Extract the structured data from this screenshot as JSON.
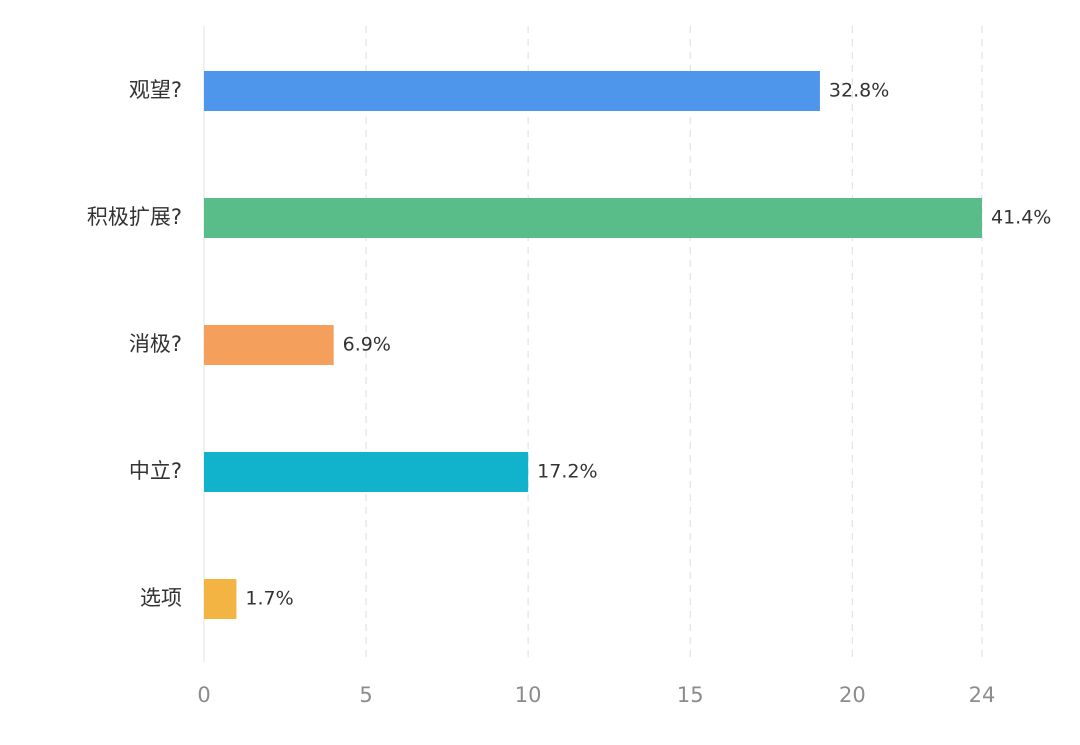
{
  "chart_data": {
    "type": "bar",
    "orientation": "horizontal",
    "categories": [
      "观望?",
      "积极扩展?",
      "消极?",
      "中立?",
      "选项"
    ],
    "values": [
      19,
      24,
      4,
      10,
      1
    ],
    "value_labels": [
      "32.8%",
      "41.4%",
      "6.9%",
      "17.2%",
      "1.7%"
    ],
    "colors": [
      "#4e95ec",
      "#58bd88",
      "#f49f5b",
      "#10b3cb",
      "#f3b444"
    ],
    "xlim": [
      0,
      24
    ],
    "xticks": [
      0,
      5,
      10,
      15,
      20,
      24
    ],
    "grid": true,
    "title": "",
    "xlabel": "",
    "ylabel": ""
  }
}
